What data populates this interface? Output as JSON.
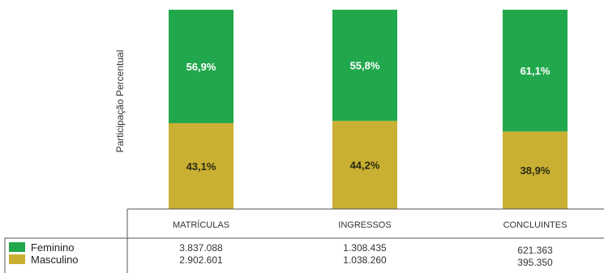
{
  "chart_data": {
    "type": "bar",
    "stacked": true,
    "percent": true,
    "ylabel": "Participação Percentual",
    "categories": [
      "MATRÍCULAS",
      "INGRESSOS",
      "CONCLUINTES"
    ],
    "series": [
      {
        "name": "Feminino",
        "color": "#22a84c",
        "values": [
          56.9,
          55.8,
          61.1
        ],
        "labels": [
          "56,9%",
          "55,8%",
          "61,1%"
        ],
        "counts": [
          "3.837.088",
          "1.308.435",
          "621.363"
        ]
      },
      {
        "name": "Masculino",
        "color": "#c9b033",
        "values": [
          43.1,
          44.2,
          38.9
        ],
        "labels": [
          "43,1%",
          "44,2%",
          "38,9%"
        ],
        "counts": [
          "2.902.601",
          "1.038.260",
          "395.350"
        ]
      }
    ],
    "legend": "table-bottom-left",
    "grid": false
  }
}
